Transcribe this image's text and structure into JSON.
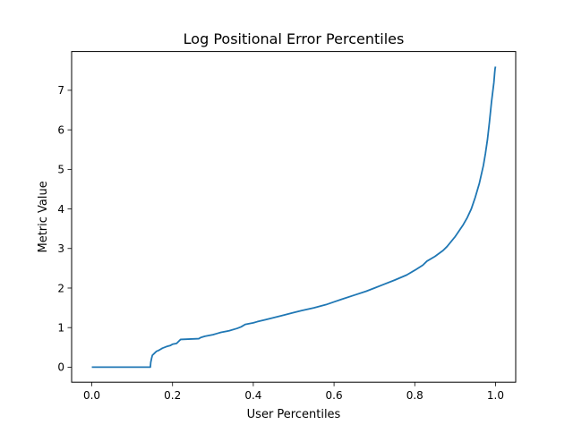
{
  "chart_data": {
    "type": "line",
    "title": "Log Positional Error Percentiles",
    "xlabel": "User Percentiles",
    "ylabel": "Metric Value",
    "xlim": [
      -0.05,
      1.05
    ],
    "ylim": [
      -0.38,
      7.98
    ],
    "xticks": [
      0.0,
      0.2,
      0.4,
      0.6,
      0.8,
      1.0
    ],
    "xtick_labels": [
      "0.0",
      "0.2",
      "0.4",
      "0.6",
      "0.8",
      "1.0"
    ],
    "yticks": [
      0,
      1,
      2,
      3,
      4,
      5,
      6,
      7
    ],
    "ytick_labels": [
      "0",
      "1",
      "2",
      "3",
      "4",
      "5",
      "6",
      "7"
    ],
    "grid": false,
    "line_color": "#1f77b4",
    "series": [
      {
        "x": [
          0.0,
          0.145,
          0.146,
          0.148,
          0.15,
          0.155,
          0.16,
          0.165,
          0.17,
          0.175,
          0.18,
          0.185,
          0.195,
          0.2,
          0.21,
          0.215,
          0.22,
          0.265,
          0.27,
          0.28,
          0.29,
          0.3,
          0.31,
          0.32,
          0.34,
          0.36,
          0.37,
          0.38,
          0.4,
          0.41,
          0.43,
          0.45,
          0.47,
          0.5,
          0.52,
          0.55,
          0.58,
          0.6,
          0.62,
          0.65,
          0.68,
          0.7,
          0.72,
          0.75,
          0.78,
          0.8,
          0.82,
          0.83,
          0.85,
          0.87,
          0.88,
          0.9,
          0.91,
          0.92,
          0.93,
          0.94,
          0.95,
          0.96,
          0.97,
          0.975,
          0.98,
          0.985,
          0.99,
          0.993,
          0.996,
          0.998,
          0.999,
          1.0
        ],
        "y": [
          0.0,
          0.0,
          0.12,
          0.22,
          0.3,
          0.35,
          0.4,
          0.42,
          0.45,
          0.48,
          0.5,
          0.52,
          0.55,
          0.58,
          0.6,
          0.65,
          0.7,
          0.72,
          0.75,
          0.78,
          0.8,
          0.82,
          0.85,
          0.88,
          0.92,
          0.98,
          1.02,
          1.08,
          1.12,
          1.15,
          1.2,
          1.25,
          1.3,
          1.38,
          1.43,
          1.5,
          1.58,
          1.65,
          1.72,
          1.82,
          1.92,
          2.0,
          2.08,
          2.2,
          2.33,
          2.45,
          2.58,
          2.68,
          2.8,
          2.95,
          3.05,
          3.3,
          3.45,
          3.6,
          3.78,
          4.0,
          4.3,
          4.65,
          5.1,
          5.4,
          5.75,
          6.2,
          6.7,
          6.95,
          7.2,
          7.45,
          7.55,
          7.6
        ]
      }
    ]
  }
}
